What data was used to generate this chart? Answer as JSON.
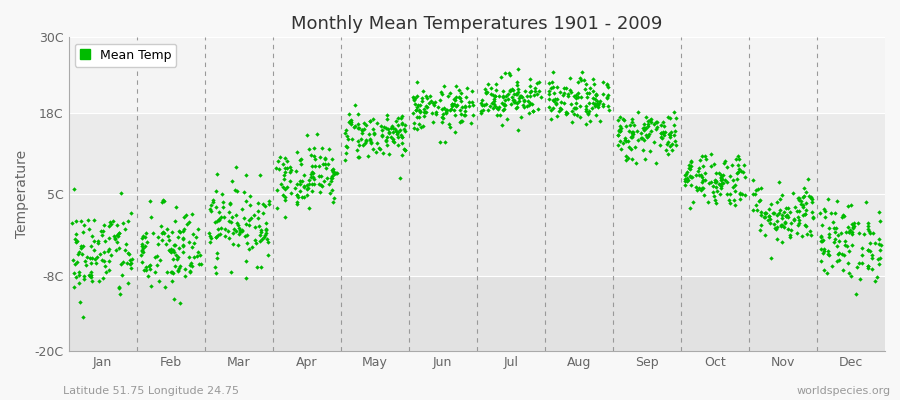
{
  "title": "Monthly Mean Temperatures 1901 - 2009",
  "ylabel": "Temperature",
  "xlabel_bottom_left": "Latitude 51.75 Longitude 24.75",
  "xlabel_bottom_right": "worldspecies.org",
  "legend_label": "Mean Temp",
  "marker_color": "#00BB00",
  "bg_light": "#F0F0F0",
  "bg_dark": "#E0E0E0",
  "fig_bg": "#F8F8F8",
  "ylim": [
    -20,
    30
  ],
  "yticks": [
    -20,
    -8,
    5,
    18,
    30
  ],
  "ytick_labels": [
    "-20C",
    "-8C",
    "5C",
    "18C",
    "30C"
  ],
  "months": [
    "Jan",
    "Feb",
    "Mar",
    "Apr",
    "May",
    "Jun",
    "Jul",
    "Aug",
    "Sep",
    "Oct",
    "Nov",
    "Dec"
  ],
  "month_means": [
    -4.5,
    -4.2,
    0.5,
    8.0,
    14.5,
    18.5,
    20.5,
    19.8,
    14.5,
    7.5,
    2.0,
    -2.5
  ],
  "month_stds": [
    3.8,
    3.8,
    3.2,
    2.5,
    2.0,
    1.8,
    1.8,
    1.8,
    2.0,
    2.2,
    2.5,
    3.2
  ],
  "num_years": 109,
  "seed": 42
}
